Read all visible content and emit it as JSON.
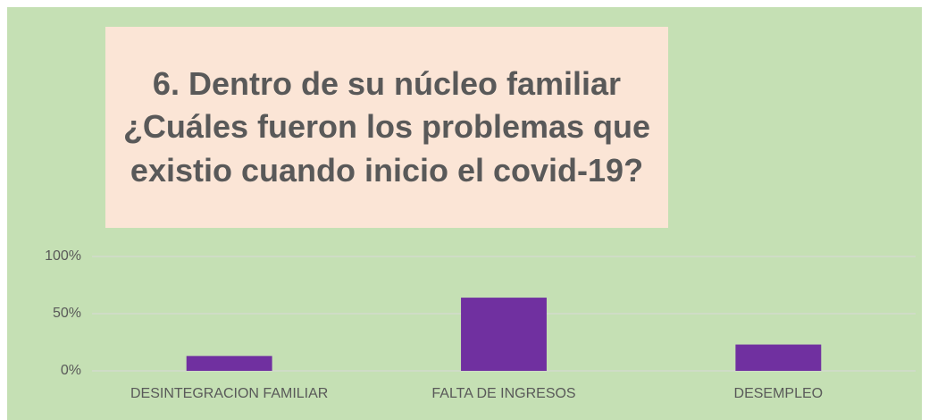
{
  "chart_data": {
    "type": "bar",
    "title": "6. Dentro de su núcleo familiar ¿Cuáles fueron los problemas que existio cuando inicio el covid-19?",
    "categories": [
      "DESINTEGRACION FAMILIAR",
      "FALTA DE INGRESOS",
      "DESEMPLEO"
    ],
    "values": [
      13,
      64,
      23
    ],
    "color": "#7030a0",
    "ylim": [
      0,
      100
    ],
    "yticks": [
      {
        "value": 0,
        "label": "0%"
      },
      {
        "value": 50,
        "label": "50%"
      },
      {
        "value": 100,
        "label": "100%"
      }
    ],
    "grid": true
  }
}
